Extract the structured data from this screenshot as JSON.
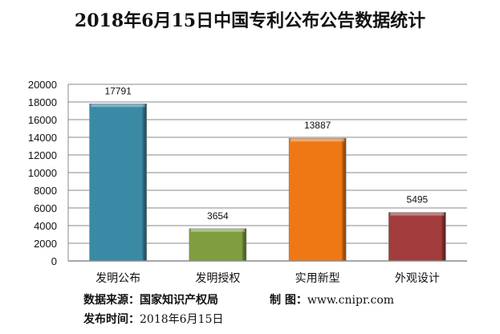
{
  "chart_data": {
    "type": "bar",
    "title": "2018年6月15日中国专利公布公告数据统计",
    "categories": [
      "发明公布",
      "发明授权",
      "实用新型",
      "外观设计"
    ],
    "values": [
      17791,
      3654,
      13887,
      5495
    ],
    "colors": [
      "#3a8aa6",
      "#7f9e3e",
      "#f07814",
      "#a23c3c"
    ],
    "ylim": [
      0,
      20000
    ],
    "yticks": [
      "0",
      "2000",
      "4000",
      "6000",
      "8000",
      "10000",
      "12000",
      "14000",
      "16000",
      "18000",
      "20000"
    ],
    "grid": true,
    "xlabel": "",
    "ylabel": ""
  },
  "footer": {
    "source_label": "数据来源：",
    "source_value": "国家知识产权局",
    "made_label": "制 图：",
    "made_value": "www.cnipr.com",
    "date_label": "发布时间：",
    "date_value": "2018年6月15日"
  }
}
